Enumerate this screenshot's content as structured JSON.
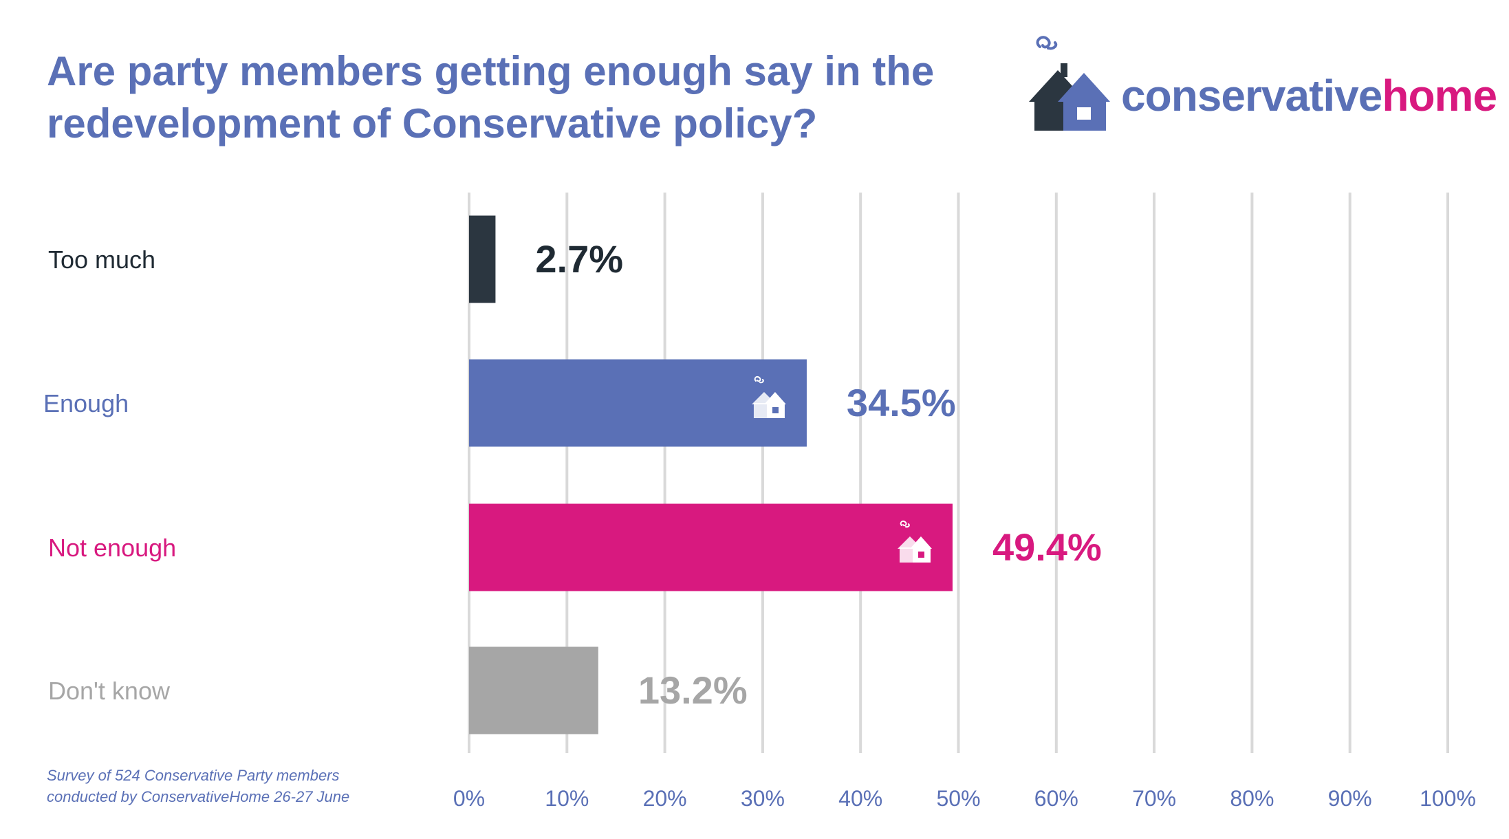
{
  "title_lines": [
    "Are party members getting enough say in the",
    "redevelopment of Conservative policy?"
  ],
  "logo": {
    "word1": "conservative",
    "word2": "home"
  },
  "footnote_lines": [
    "Survey of 524 Conservative Party members",
    "conducted by ConservativeHome 26-27 June"
  ],
  "colors": {
    "title": "#5a70b6",
    "grid": "#d9d9d9",
    "axis_labels": "#5a70b6"
  },
  "chart_data": {
    "type": "bar",
    "orientation": "horizontal",
    "categories": [
      "Too much",
      "Enough",
      "Not enough",
      "Don't know"
    ],
    "values": [
      2.7,
      34.5,
      49.4,
      13.2
    ],
    "value_labels": [
      "2.7%",
      "34.5%",
      "49.4%",
      "13.2%"
    ],
    "bar_colors": [
      "#2b3640",
      "#5a70b6",
      "#d8197f",
      "#a6a6a6"
    ],
    "label_colors": [
      "#1f2a33",
      "#5a70b6",
      "#d8197f",
      "#a6a6a6"
    ],
    "bar_icons": [
      false,
      true,
      true,
      false
    ],
    "xlim": [
      0,
      100
    ],
    "xticks": [
      "0%",
      "10%",
      "20%",
      "30%",
      "40%",
      "50%",
      "60%",
      "70%",
      "80%",
      "90%",
      "100%"
    ],
    "grid": true
  }
}
